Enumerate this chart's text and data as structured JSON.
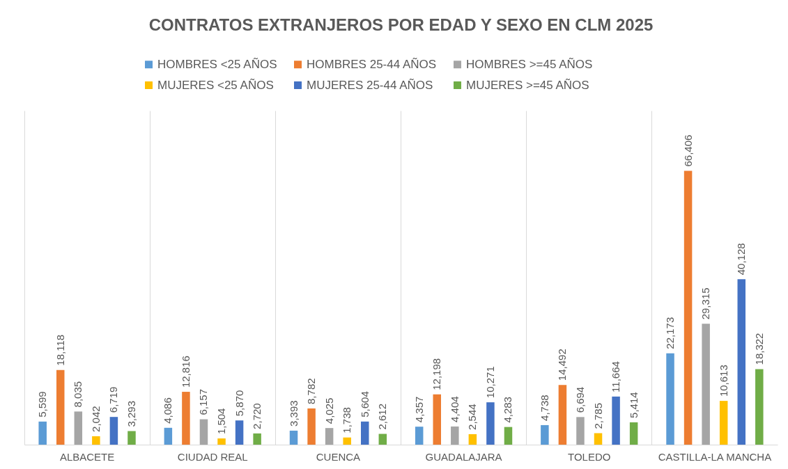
{
  "chart_data": {
    "type": "bar",
    "title": "CONTRATOS EXTRANJEROS POR EDAD Y SEXO EN CLM 2025",
    "categories": [
      "ALBACETE",
      "CIUDAD REAL",
      "CUENCA",
      "GUADALAJARA",
      "TOLEDO",
      "CASTILLA-LA MANCHA"
    ],
    "series": [
      {
        "name": "HOMBRES <25 AÑOS",
        "color": "#5b9bd5",
        "values": [
          5599,
          4086,
          3393,
          4357,
          4738,
          22173
        ],
        "value_labels": [
          "5,599",
          "4,086",
          "3,393",
          "4,357",
          "4,738",
          "22,173"
        ]
      },
      {
        "name": "HOMBRES 25-44 AÑOS",
        "color": "#ed7d31",
        "values": [
          18118,
          12816,
          8782,
          12198,
          14492,
          66406
        ],
        "value_labels": [
          "18,118",
          "12,816",
          "8,782",
          "12,198",
          "14,492",
          "66,406"
        ]
      },
      {
        "name": "HOMBRES >=45 AÑOS",
        "color": "#a5a5a5",
        "values": [
          8035,
          6157,
          4025,
          4404,
          6694,
          29315
        ],
        "value_labels": [
          "8,035",
          "6,157",
          "4,025",
          "4,404",
          "6,694",
          "29,315"
        ]
      },
      {
        "name": "MUJERES <25 AÑOS",
        "color": "#ffc000",
        "values": [
          2042,
          1504,
          1738,
          2544,
          2785,
          10613
        ],
        "value_labels": [
          "2,042",
          "1,504",
          "1,738",
          "2,544",
          "2,785",
          "10,613"
        ]
      },
      {
        "name": "MUJERES 25-44 AÑOS",
        "color": "#4472c4",
        "values": [
          6719,
          5870,
          5604,
          10271,
          11664,
          40128
        ],
        "value_labels": [
          "6,719",
          "5,870",
          "5,604",
          "10,271",
          "11,664",
          "40,128"
        ]
      },
      {
        "name": "MUJERES >=45 AÑOS",
        "color": "#70ad47",
        "values": [
          3293,
          2720,
          2612,
          4283,
          5414,
          18322
        ],
        "value_labels": [
          "3,293",
          "2,720",
          "2,612",
          "4,283",
          "5,414",
          "18,322"
        ]
      }
    ],
    "grid": "x",
    "legend": "top"
  }
}
